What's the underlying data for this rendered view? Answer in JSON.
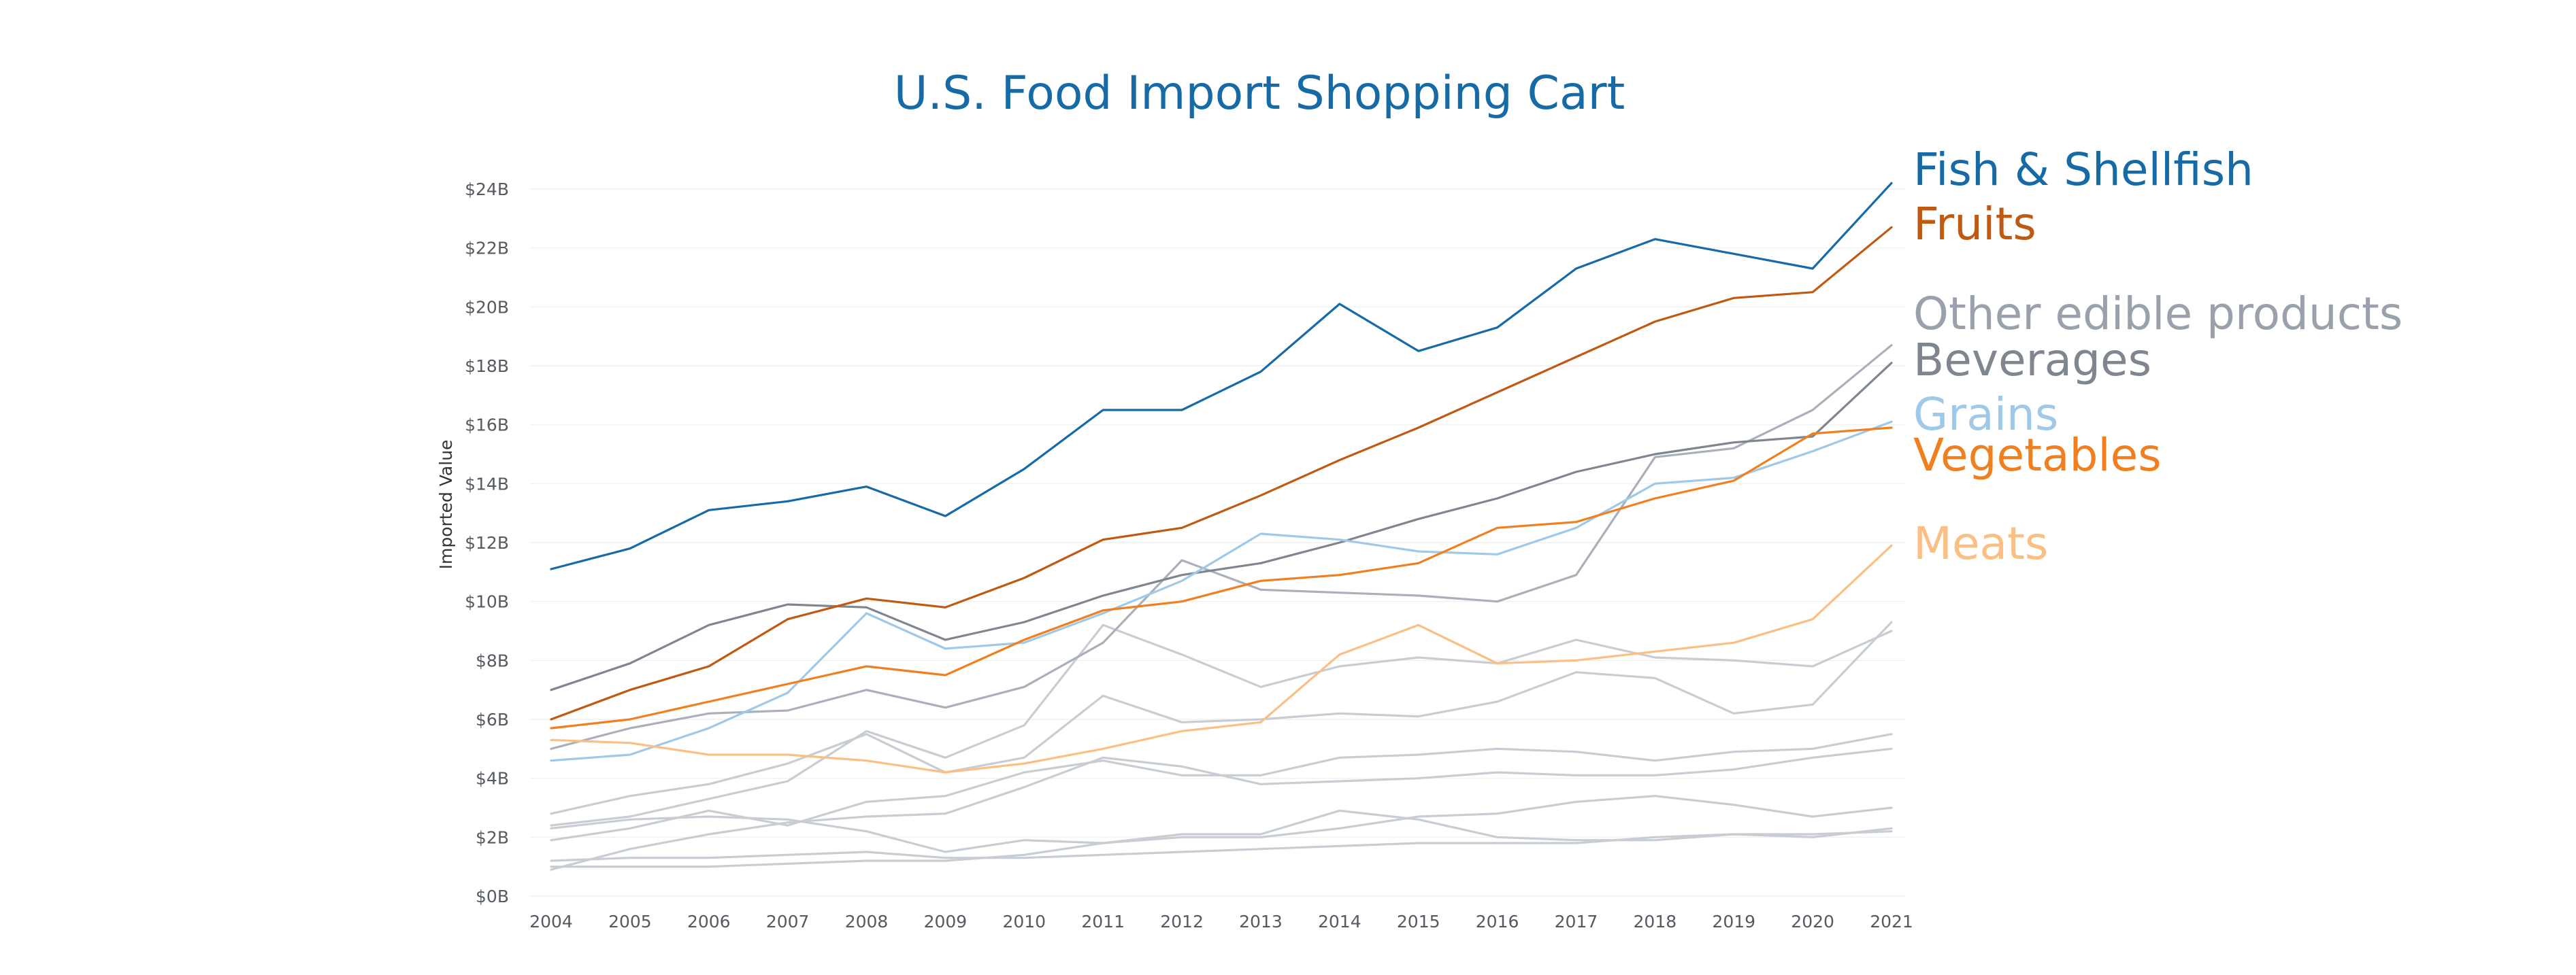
{
  "chart_data": {
    "type": "line",
    "title": "U.S. Food Import Shopping Cart",
    "xlabel": "",
    "ylabel": "Imported Value",
    "grid": true,
    "legend": "direct labels at right end of lines",
    "ylim": [
      0,
      24
    ],
    "y_unit_suffix": "B",
    "y_ticks": [
      {
        "value": 0,
        "label": "$0B"
      },
      {
        "value": 2,
        "label": "$2B"
      },
      {
        "value": 4,
        "label": "$4B"
      },
      {
        "value": 6,
        "label": "$6B"
      },
      {
        "value": 8,
        "label": "$8B"
      },
      {
        "value": 10,
        "label": "$10B"
      },
      {
        "value": 12,
        "label": "$12B"
      },
      {
        "value": 14,
        "label": "$14B"
      },
      {
        "value": 16,
        "label": "$16B"
      },
      {
        "value": 18,
        "label": "$18B"
      },
      {
        "value": 20,
        "label": "$20B"
      },
      {
        "value": 22,
        "label": "$22B"
      },
      {
        "value": 24,
        "label": "$24B"
      }
    ],
    "x": [
      "2004",
      "2005",
      "2006",
      "2007",
      "2008",
      "2009",
      "2010",
      "2011",
      "2012",
      "2013",
      "2014",
      "2015",
      "2016",
      "2017",
      "2018",
      "2019",
      "2020",
      "2021"
    ],
    "series": [
      {
        "name": "",
        "color": "#c8cdd4",
        "values": [
          1.2,
          1.3,
          1.3,
          1.4,
          1.5,
          1.3,
          1.3,
          1.4,
          1.5,
          1.6,
          1.7,
          1.8,
          1.8,
          1.8,
          2.0,
          2.1,
          2.1,
          2.2
        ]
      },
      {
        "name": "",
        "color": "#c8cdd4",
        "values": [
          1.0,
          1.0,
          1.0,
          1.1,
          1.2,
          1.2,
          1.4,
          1.8,
          2.1,
          2.1,
          2.9,
          2.6,
          2.0,
          1.9,
          1.9,
          2.1,
          2.0,
          2.3
        ]
      },
      {
        "name": "",
        "color": "#c8cdd4",
        "values": [
          0.9,
          1.6,
          2.1,
          2.5,
          2.7,
          2.8,
          3.7,
          4.7,
          4.4,
          3.8,
          3.9,
          4.0,
          4.2,
          4.1,
          4.1,
          4.3,
          4.7,
          5.0
        ]
      },
      {
        "name": "",
        "color": "#c8cdd4",
        "values": [
          2.3,
          2.6,
          2.7,
          2.6,
          2.2,
          1.5,
          1.9,
          1.8,
          2.0,
          2.0,
          2.3,
          2.7,
          2.8,
          3.2,
          3.4,
          3.1,
          2.7,
          3.0
        ]
      },
      {
        "name": "",
        "color": "#c8cdd4",
        "values": [
          1.9,
          2.3,
          2.9,
          2.4,
          3.2,
          3.4,
          4.2,
          4.6,
          4.1,
          4.1,
          4.7,
          4.8,
          5.0,
          4.9,
          4.6,
          4.9,
          5.0,
          5.5
        ]
      },
      {
        "name": "",
        "color": "#c8cdd4",
        "values": [
          2.8,
          3.4,
          3.8,
          4.5,
          5.5,
          4.2,
          4.7,
          6.8,
          5.9,
          6.0,
          6.2,
          6.1,
          6.6,
          7.6,
          7.4,
          6.2,
          6.5,
          9.3
        ]
      },
      {
        "name": "",
        "color": "#c8cdd4",
        "values": [
          2.4,
          2.7,
          3.3,
          3.9,
          5.6,
          4.7,
          5.8,
          9.2,
          8.2,
          7.1,
          7.8,
          8.1,
          7.9,
          8.7,
          8.1,
          8.0,
          7.8,
          9.0
        ]
      },
      {
        "name": "",
        "color": "#aab0bb",
        "values": [
          5.0,
          5.7,
          6.2,
          6.3,
          7.0,
          6.4,
          7.1,
          8.6,
          11.4,
          10.4,
          10.3,
          10.2,
          10.0,
          10.9,
          14.9,
          15.2,
          16.5,
          18.7
        ]
      },
      {
        "name": "",
        "color": "#7f868f",
        "values": [
          7.0,
          7.9,
          9.2,
          9.9,
          9.8,
          8.7,
          9.3,
          10.2,
          10.9,
          11.3,
          12.0,
          12.8,
          13.5,
          14.4,
          15.0,
          15.4,
          15.6,
          18.1
        ]
      },
      {
        "name": "",
        "color": "#9fc9e8",
        "values": [
          4.6,
          4.8,
          5.7,
          6.9,
          9.6,
          8.4,
          8.6,
          9.6,
          10.7,
          12.3,
          12.1,
          11.7,
          11.6,
          12.5,
          14.0,
          14.2,
          15.1,
          16.1
        ]
      },
      {
        "name": "",
        "color": "#f07f1f",
        "values": [
          5.7,
          6.0,
          6.6,
          7.2,
          7.8,
          7.5,
          8.7,
          9.7,
          10.0,
          10.7,
          10.9,
          11.3,
          12.5,
          12.7,
          13.5,
          14.1,
          15.7,
          15.9
        ]
      },
      {
        "name": "",
        "color": "#fbbf84",
        "values": [
          5.3,
          5.2,
          4.8,
          4.8,
          4.6,
          4.2,
          4.5,
          5.0,
          5.6,
          5.9,
          8.2,
          9.2,
          7.9,
          8.0,
          8.3,
          8.6,
          9.4,
          11.9
        ]
      },
      {
        "name": "",
        "color": "#c05a12",
        "values": [
          6.0,
          7.0,
          7.8,
          9.4,
          10.1,
          9.8,
          10.8,
          12.1,
          12.5,
          13.6,
          14.8,
          15.9,
          17.1,
          18.3,
          19.5,
          20.3,
          20.5,
          22.7
        ]
      },
      {
        "name": "",
        "color": "#166aa6",
        "values": [
          11.1,
          11.8,
          13.1,
          13.4,
          13.9,
          12.9,
          14.5,
          16.5,
          16.5,
          17.8,
          20.1,
          18.5,
          19.3,
          21.3,
          22.3,
          21.8,
          21.3,
          24.2
        ]
      }
    ],
    "labels": [
      {
        "text": "Fish & Shellfish",
        "color": "#166aa6"
      },
      {
        "text": "Fruits",
        "color": "#c05a12"
      },
      {
        "text": "Other edible products",
        "color": "#9aa1ad"
      },
      {
        "text": "Beverages",
        "color": "#7f868f"
      },
      {
        "text": "Grains",
        "color": "#9fc9e8"
      },
      {
        "text": "Vegetables",
        "color": "#f07f1f"
      },
      {
        "text": "Meats",
        "color": "#fbbf84"
      }
    ],
    "title_color": "#166aa6"
  }
}
